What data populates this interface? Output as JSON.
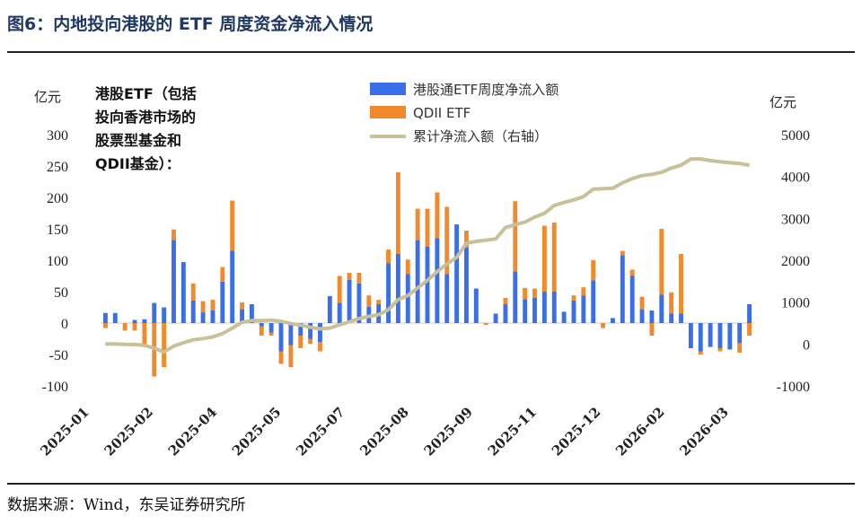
{
  "figure": {
    "title": "图6：内地投向港股的 ETF 周度资金净流入情况",
    "source": "数据来源：Wind，东吴证券研究所"
  },
  "chart_data": {
    "type": "bar",
    "stacked": true,
    "annotation": [
      "港股ETF（包括",
      "投向香港市场的",
      "股票型基金和",
      "QDII基金）："
    ],
    "y_left": {
      "unit": "亿元",
      "lim": [
        -100,
        300
      ],
      "ticks": [
        -100,
        -50,
        0,
        50,
        100,
        150,
        200,
        250,
        300
      ]
    },
    "y_right": {
      "unit": "亿元",
      "lim": [
        -1000,
        5000
      ],
      "ticks": [
        -1000,
        0,
        1000,
        2000,
        3000,
        4000,
        5000
      ]
    },
    "x_ticks": [
      "2025-01",
      "2025-02",
      "2025-04",
      "2025-05",
      "2025-07",
      "2025-08",
      "2025-09",
      "2025-11",
      "2025-12",
      "2026-02",
      "2026-03"
    ],
    "legend": [
      {
        "label": "港股通ETF周度净流入额",
        "color": "#3b6fe8",
        "kind": "bar"
      },
      {
        "label": "QDII ETF",
        "color": "#f08a2c",
        "kind": "bar"
      },
      {
        "label": "累计净流入额（右轴）",
        "color": "#c9bf98",
        "kind": "line"
      }
    ],
    "series": [
      {
        "name": "港股通ETF周度净流入额",
        "axis": "left",
        "values": [
          16,
          16,
          0,
          5,
          6,
          32,
          25,
          132,
          97,
          36,
          17,
          20,
          66,
          115,
          22,
          30,
          -5,
          -15,
          -45,
          -35,
          -20,
          -25,
          -30,
          43,
          32,
          69,
          63,
          26,
          30,
          95,
          110,
          78,
          132,
          122,
          135,
          78,
          157,
          120,
          55,
          0,
          15,
          30,
          82,
          38,
          40,
          50,
          50,
          18,
          36,
          44,
          68,
          0,
          8,
          108,
          75,
          22,
          20,
          45,
          15,
          15,
          -40,
          -45,
          -38,
          -40,
          -42,
          -32,
          30
        ]
      },
      {
        "name": "QDII ETF",
        "axis": "left",
        "values": [
          -8,
          0,
          -12,
          -12,
          -38,
          -85,
          -70,
          17,
          0,
          27,
          18,
          17,
          23,
          80,
          11,
          0,
          -15,
          -5,
          -20,
          -35,
          -20,
          -8,
          -15,
          0,
          43,
          11,
          17,
          18,
          7,
          22,
          130,
          23,
          50,
          60,
          73,
          107,
          0,
          27,
          0,
          -3,
          0,
          10,
          112,
          18,
          15,
          105,
          110,
          0,
          8,
          13,
          32,
          -8,
          0,
          7,
          10,
          20,
          -20,
          105,
          34,
          95,
          0,
          -5,
          0,
          -5,
          0,
          -15,
          -20
        ]
      },
      {
        "name": "累计净流入额（右轴）",
        "axis": "right",
        "values": [
          0,
          0,
          -10,
          -12,
          -30,
          -100,
          -190,
          -50,
          30,
          100,
          130,
          170,
          250,
          380,
          520,
          560,
          560,
          570,
          540,
          490,
          450,
          400,
          360,
          380,
          460,
          530,
          610,
          660,
          700,
          820,
          1060,
          1160,
          1340,
          1520,
          1730,
          1910,
          2070,
          2410,
          2450,
          2480,
          2510,
          2780,
          2850,
          2910,
          3030,
          3120,
          3310,
          3380,
          3440,
          3520,
          3700,
          3710,
          3720,
          3850,
          3950,
          4020,
          4050,
          4100,
          4200,
          4270,
          4420,
          4420,
          4380,
          4350,
          4330,
          4310,
          4270
        ]
      }
    ]
  }
}
